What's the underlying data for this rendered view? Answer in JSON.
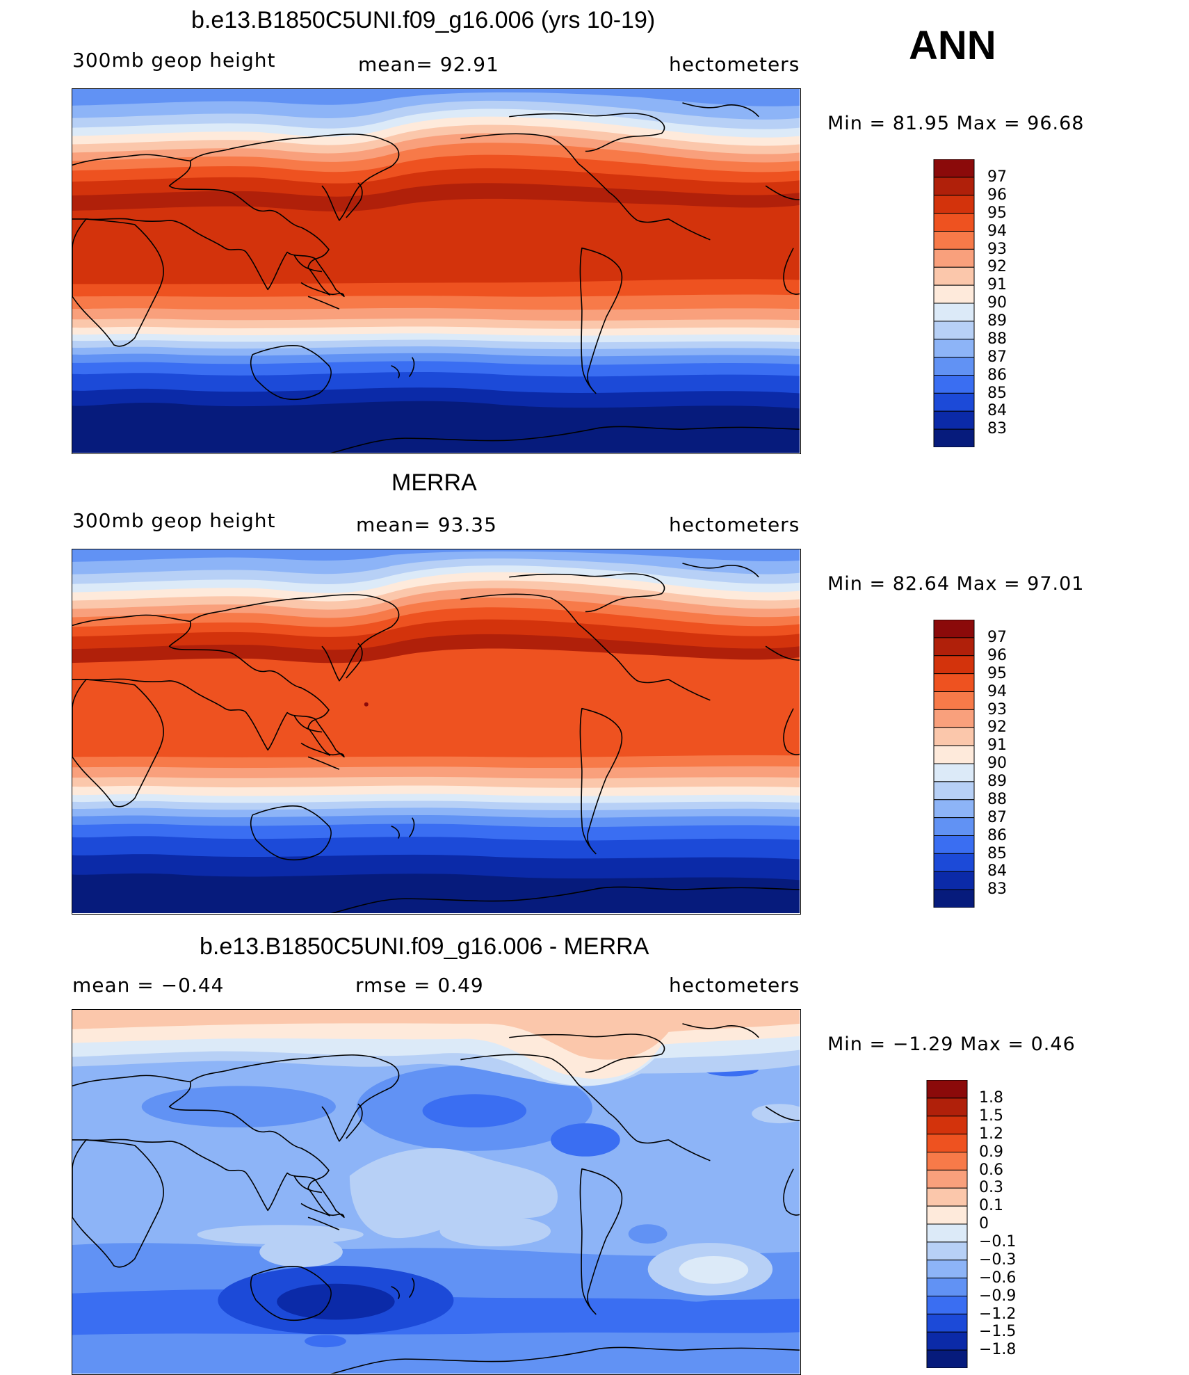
{
  "header": {
    "season": "ANN"
  },
  "panels": [
    {
      "title": "b.e13.B1850C5UNI.f09_g16.006 (yrs 10-19)",
      "left_label": "300mb  geop  height",
      "center_label": "mean=   92.91",
      "right_label": "hectometers",
      "minmax": "Min  =    81.95  Max  =    96.68"
    },
    {
      "title": "MERRA",
      "left_label": "300mb  geop  height",
      "center_label": "mean=   93.35",
      "right_label": "hectometers",
      "minmax": "Min  =    82.64  Max  =    97.01"
    },
    {
      "title": "b.e13.B1850C5UNI.f09_g16.006 - MERRA",
      "left_label": "mean  =     −0.44",
      "center_label": "rmse  =     0.49",
      "right_label": "hectometers",
      "minmax": "Min  =    −1.29  Max  =     0.46"
    }
  ],
  "colorbars": [
    {
      "labels": [
        "97",
        "96",
        "95",
        "94",
        "93",
        "92",
        "91",
        "90",
        "89",
        "88",
        "87",
        "86",
        "85",
        "84",
        "83"
      ]
    },
    {
      "labels": [
        "97",
        "96",
        "95",
        "94",
        "93",
        "92",
        "91",
        "90",
        "89",
        "88",
        "87",
        "86",
        "85",
        "84",
        "83"
      ]
    },
    {
      "labels": [
        "1.8",
        "1.5",
        "1.2",
        "0.9",
        "0.6",
        "0.3",
        "0.1",
        "0",
        "−0.1",
        "−0.3",
        "−0.6",
        "−0.9",
        "−1.2",
        "−1.5",
        "−1.8"
      ]
    }
  ],
  "palette": [
    "#8b0a0a",
    "#b0200a",
    "#d3330c",
    "#ee5220",
    "#f77a49",
    "#f9a07c",
    "#fbc7ab",
    "#feeadb",
    "#dceaf8",
    "#b7d0f6",
    "#8db4f7",
    "#6192f4",
    "#3a6ef2",
    "#1c4ad8",
    "#0b2aa8",
    "#061b7c"
  ],
  "chart_data": {
    "type": "heatmap",
    "title": "300mb geopotential height, annual mean",
    "units": "hectometers",
    "panels": [
      {
        "name": "b.e13.B1850C5UNI.f09_g16.006 (yrs 10-19)",
        "mean": 92.91,
        "min": 81.95,
        "max": 96.68,
        "levels": [
          83,
          84,
          85,
          86,
          87,
          88,
          89,
          90,
          91,
          92,
          93,
          94,
          95,
          96,
          97
        ]
      },
      {
        "name": "MERRA",
        "mean": 93.35,
        "min": 82.64,
        "max": 97.01,
        "levels": [
          83,
          84,
          85,
          86,
          87,
          88,
          89,
          90,
          91,
          92,
          93,
          94,
          95,
          96,
          97
        ]
      },
      {
        "name": "b.e13.B1850C5UNI.f09_g16.006 - MERRA",
        "mean": -0.44,
        "rmse": 0.49,
        "min": -1.29,
        "max": 0.46,
        "levels": [
          -1.8,
          -1.5,
          -1.2,
          -0.9,
          -0.6,
          -0.3,
          -0.1,
          0,
          0.1,
          0.3,
          0.6,
          0.9,
          1.2,
          1.5,
          1.8
        ]
      }
    ]
  }
}
